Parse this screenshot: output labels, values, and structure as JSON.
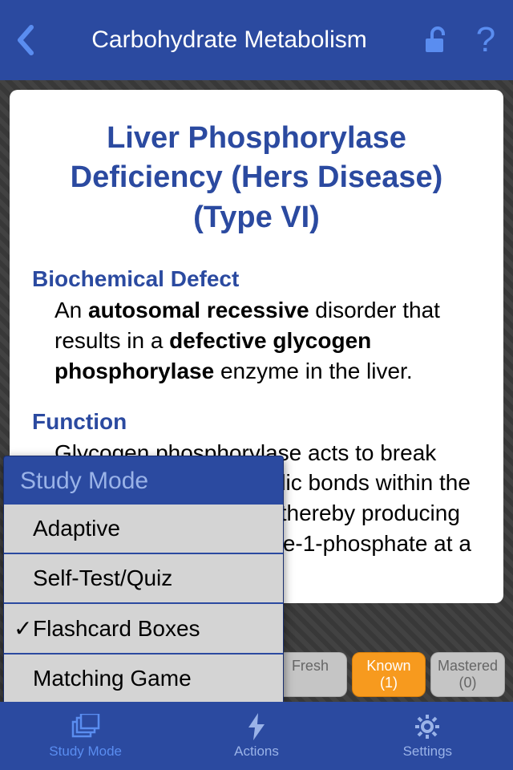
{
  "header": {
    "title": "Carbohydrate Metabolism"
  },
  "card": {
    "title": "Liver Phosphorylase Deficiency (Hers Disease) (Type VI)",
    "section1_heading": "Biochemical Defect",
    "section1_body_pre": "An ",
    "section1_b1": "autosomal recessive",
    "section1_mid1": " disorder that results in a ",
    "section1_b2": "defective glycogen phosphorylase",
    "section1_post": " enzyme in the liver.",
    "section2_heading": "Function",
    "section2_body": "Glycogen phosphorylase acts to break down the α1-4-glycosidic bonds within the branches of glycogen, thereby producing one molecule of glycose-1-phosphate at a time, which are"
  },
  "status": {
    "fresh": {
      "label": "Fresh",
      "count": ""
    },
    "known": {
      "label": "Known",
      "count": "(1)"
    },
    "mastered": {
      "label": "Mastered",
      "count": "(0)"
    }
  },
  "tabs": {
    "study": "Study Mode",
    "actions": "Actions",
    "settings": "Settings"
  },
  "popover": {
    "title": "Study Mode",
    "items": [
      {
        "label": "Adaptive",
        "checked": false
      },
      {
        "label": "Self-Test/Quiz",
        "checked": false
      },
      {
        "label": "Flashcard Boxes",
        "checked": true
      },
      {
        "label": "Matching Game",
        "checked": false
      }
    ]
  },
  "colors": {
    "primary": "#2b4aa0",
    "accent": "#f79a1e",
    "icon_light": "#9ab3e8"
  }
}
